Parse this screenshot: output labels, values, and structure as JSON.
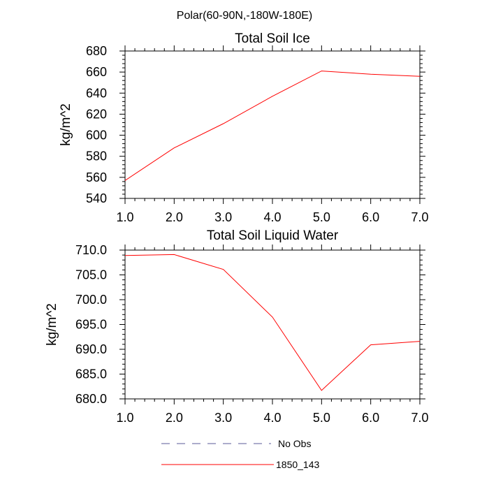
{
  "figure": {
    "suptitle": "Polar(60-90N,-180W-180E)"
  },
  "legend": {
    "items": [
      {
        "label": "No Obs",
        "color": "#5a5a9a",
        "dash": true
      },
      {
        "label": "1850_143",
        "color": "#ff0000",
        "dash": false
      }
    ]
  },
  "chart_data": [
    {
      "type": "line",
      "title": "Total Soil Ice",
      "ylabel": "kg/m^2",
      "xlabel": "",
      "xlim": [
        1.0,
        7.0
      ],
      "ylim": [
        540,
        680
      ],
      "xticks": [
        "1.0",
        "2.0",
        "3.0",
        "4.0",
        "5.0",
        "6.0",
        "7.0"
      ],
      "yticks": [
        "540",
        "560",
        "580",
        "600",
        "620",
        "640",
        "660",
        "680"
      ],
      "grid": false,
      "series": [
        {
          "name": "1850_143",
          "color": "#ff0000",
          "x": [
            1,
            2,
            3,
            4,
            5,
            6,
            7
          ],
          "values": [
            557,
            588,
            611,
            637,
            661,
            658,
            656
          ]
        }
      ]
    },
    {
      "type": "line",
      "title": "Total Soil Liquid Water",
      "ylabel": "kg/m^2",
      "xlabel": "",
      "xlim": [
        1.0,
        7.0
      ],
      "ylim": [
        680.0,
        710.0
      ],
      "xticks": [
        "1.0",
        "2.0",
        "3.0",
        "4.0",
        "5.0",
        "6.0",
        "7.0"
      ],
      "yticks": [
        "680.0",
        "685.0",
        "690.0",
        "695.0",
        "700.0",
        "705.0",
        "710.0"
      ],
      "grid": false,
      "series": [
        {
          "name": "1850_143",
          "color": "#ff0000",
          "x": [
            1,
            2,
            3,
            4,
            5,
            6,
            7
          ],
          "values": [
            708.9,
            709.1,
            706.1,
            696.5,
            681.7,
            690.9,
            691.6
          ]
        }
      ]
    }
  ]
}
